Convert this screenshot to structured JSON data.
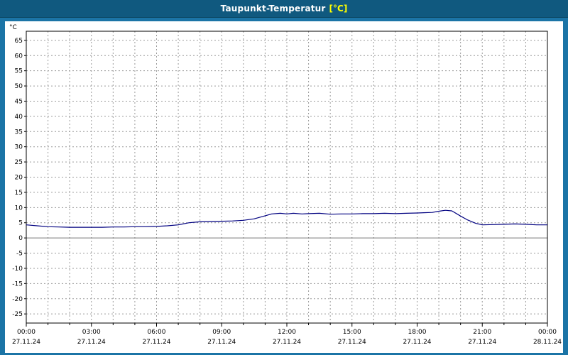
{
  "title": {
    "main": "Taupunkt-Temperatur",
    "unit": "[°C]"
  },
  "colors": {
    "background": "#1b74a6",
    "titlebar": "#10597f",
    "title_text": "#ffffff",
    "title_unit": "#ffff00",
    "panel": "#ffffff",
    "grid": "#9a9a9a",
    "zero_line": "#777777",
    "axis": "#000000",
    "line": "#000080",
    "tick_text": "#000000"
  },
  "chart_data": {
    "type": "line",
    "title": "Taupunkt-Temperatur [°C]",
    "ylabel": "°C",
    "xlim": [
      0,
      24
    ],
    "ylim": [
      -28,
      68
    ],
    "yticks": [
      65,
      60,
      55,
      50,
      45,
      40,
      35,
      30,
      25,
      20,
      15,
      10,
      5,
      0,
      -5,
      -10,
      -15,
      -20,
      -25
    ],
    "grid": "dashed, hourly vertical, 5-degree horizontal",
    "legend": "none",
    "xticks": [
      {
        "hour": 0,
        "time": "00:00",
        "date": "27.11.24"
      },
      {
        "hour": 3,
        "time": "03:00",
        "date": "27.11.24"
      },
      {
        "hour": 6,
        "time": "06:00",
        "date": "27.11.24"
      },
      {
        "hour": 9,
        "time": "09:00",
        "date": "27.11.24"
      },
      {
        "hour": 12,
        "time": "12:00",
        "date": "27.11.24"
      },
      {
        "hour": 15,
        "time": "15:00",
        "date": "27.11.24"
      },
      {
        "hour": 18,
        "time": "18:00",
        "date": "27.11.24"
      },
      {
        "hour": 21,
        "time": "21:00",
        "date": "27.11.24"
      },
      {
        "hour": 24,
        "time": "00:00",
        "date": "28.11.24"
      }
    ],
    "series": [
      {
        "name": "Taupunkt-Temperatur",
        "points": [
          [
            0,
            4.3
          ],
          [
            0.5,
            4.0
          ],
          [
            1,
            3.7
          ],
          [
            1.5,
            3.6
          ],
          [
            2,
            3.5
          ],
          [
            2.5,
            3.5
          ],
          [
            3,
            3.5
          ],
          [
            3.5,
            3.5
          ],
          [
            4,
            3.6
          ],
          [
            4.5,
            3.6
          ],
          [
            5,
            3.7
          ],
          [
            5.5,
            3.7
          ],
          [
            6,
            3.8
          ],
          [
            6.5,
            4.0
          ],
          [
            7,
            4.3
          ],
          [
            7.5,
            5.0
          ],
          [
            8,
            5.3
          ],
          [
            8.5,
            5.4
          ],
          [
            9,
            5.5
          ],
          [
            9.5,
            5.6
          ],
          [
            10,
            5.8
          ],
          [
            10.5,
            6.3
          ],
          [
            11,
            7.3
          ],
          [
            11.3,
            7.9
          ],
          [
            11.7,
            8.1
          ],
          [
            12,
            7.9
          ],
          [
            12.3,
            8.1
          ],
          [
            12.7,
            7.9
          ],
          [
            13,
            8.0
          ],
          [
            13.5,
            8.1
          ],
          [
            14,
            7.8
          ],
          [
            14.5,
            7.9
          ],
          [
            15,
            7.9
          ],
          [
            15.5,
            8.0
          ],
          [
            16,
            8.0
          ],
          [
            16.5,
            8.1
          ],
          [
            17,
            8.0
          ],
          [
            17.5,
            8.1
          ],
          [
            18,
            8.2
          ],
          [
            18.3,
            8.3
          ],
          [
            18.7,
            8.4
          ],
          [
            19,
            8.8
          ],
          [
            19.3,
            9.1
          ],
          [
            19.6,
            8.9
          ],
          [
            20,
            7.2
          ],
          [
            20.3,
            6.0
          ],
          [
            20.7,
            4.8
          ],
          [
            21,
            4.3
          ],
          [
            21.5,
            4.4
          ],
          [
            22,
            4.5
          ],
          [
            22.5,
            4.6
          ],
          [
            23,
            4.5
          ],
          [
            23.5,
            4.3
          ],
          [
            24,
            4.3
          ]
        ]
      }
    ]
  }
}
